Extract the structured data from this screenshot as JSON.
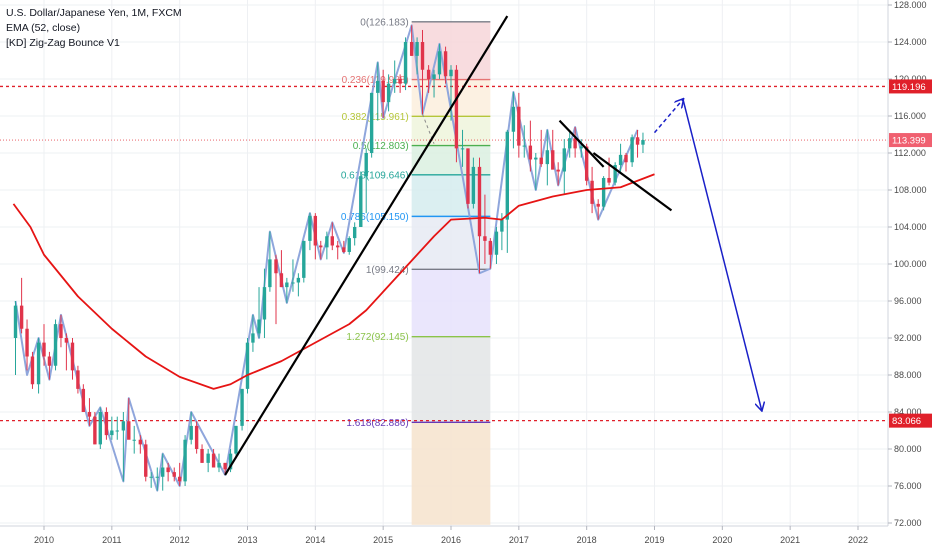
{
  "legend": {
    "title": "U.S. Dollar/Japanese Yen, 1M, FXCM",
    "ema": "EMA (52, close)",
    "indicator": "[KD] Zig-Zag Bounce V1"
  },
  "colors": {
    "up_candle": "#26a69a",
    "down_candle": "#e0344b",
    "ema": "#e61414",
    "zigzag": "#8fa6dc",
    "trendline": "#000000",
    "projection": "#1a20c8",
    "hline": "#e0202a",
    "grid": "#eef0f3"
  },
  "price_tags": [
    {
      "label": "119.196",
      "value": 119.196,
      "style": "filled"
    },
    {
      "label": "113.399",
      "value": 113.399,
      "style": "current"
    },
    {
      "label": "83.066",
      "value": 83.066,
      "style": "filled"
    }
  ],
  "chart_data": {
    "type": "candlestick",
    "title": "U.S. Dollar/Japanese Yen, 1M, FXCM",
    "x_ticks": [
      "2010",
      "2011",
      "2012",
      "2013",
      "2014",
      "2015",
      "2016",
      "2017",
      "2018",
      "2019",
      "2020",
      "2021",
      "2022"
    ],
    "y_ticks": [
      "72.000",
      "76.000",
      "80.000",
      "84.000",
      "88.000",
      "92.000",
      "96.000",
      "100.000",
      "104.000",
      "108.000",
      "112.000",
      "116.000",
      "120.000",
      "124.000",
      "128.000"
    ],
    "ylim": [
      71.5,
      128.5
    ],
    "xlim": [
      2009.55,
      2022.5
    ],
    "horizontal_lines": [
      119.196,
      83.066
    ],
    "current_price": 113.399,
    "fibonacci": {
      "from_date": 2015.42,
      "to_date": 2016.58,
      "levels": [
        {
          "label": "0(126.183)",
          "value": 126.183,
          "color": "#787b86",
          "fill": "#f7d6d9"
        },
        {
          "label": "0.236(119.938)",
          "value": 119.938,
          "color": "#e57373",
          "fill": "#fbeedd"
        },
        {
          "label": "0.382(115.961)",
          "value": 115.961,
          "color": "#b5c63a",
          "fill": "#eef5dc"
        },
        {
          "label": "0.5(112.803)",
          "value": 112.803,
          "color": "#4caf50",
          "fill": "#dbf0e0"
        },
        {
          "label": "0.618(109.646)",
          "value": 109.646,
          "color": "#26a69a",
          "fill": "#d5ecef"
        },
        {
          "label": "0.786(105.150)",
          "value": 105.15,
          "color": "#2196f3",
          "fill": "#e6eaf3"
        },
        {
          "label": "1(99.424)",
          "value": 99.424,
          "color": "#787b86",
          "fill": "#e6e2fb"
        },
        {
          "label": "1.272(92.145)",
          "value": 92.145,
          "color": "#8bc34a",
          "fill": "#e3e5e6"
        },
        {
          "label": "1.618(82.886)",
          "value": 82.886,
          "color": "#673ab7",
          "fill": "#f6e3cc"
        }
      ],
      "bottom": 71.8
    },
    "candles": [
      [
        2009.58,
        92.0,
        96.0,
        88.0,
        95.5
      ],
      [
        2009.67,
        95.5,
        98.5,
        92.5,
        93.0
      ],
      [
        2009.75,
        93.0,
        94.0,
        88.5,
        90.0
      ],
      [
        2009.83,
        90.0,
        90.5,
        86.5,
        87.0
      ],
      [
        2009.92,
        87.0,
        92.0,
        86.0,
        91.5
      ],
      [
        2010.0,
        91.5,
        93.5,
        89.0,
        90.0
      ],
      [
        2010.08,
        90.0,
        90.5,
        87.5,
        89.0
      ],
      [
        2010.17,
        89.0,
        94.0,
        88.5,
        93.5
      ],
      [
        2010.25,
        93.5,
        94.5,
        91.0,
        92.0
      ],
      [
        2010.33,
        92.0,
        92.5,
        88.5,
        91.5
      ],
      [
        2010.42,
        91.5,
        92.0,
        87.5,
        88.5
      ],
      [
        2010.5,
        88.5,
        89.0,
        86.0,
        86.5
      ],
      [
        2010.58,
        86.5,
        87.0,
        84.0,
        84.0
      ],
      [
        2010.67,
        84.0,
        85.5,
        82.5,
        83.5
      ],
      [
        2010.75,
        83.5,
        84.0,
        80.5,
        80.5
      ],
      [
        2010.83,
        80.5,
        84.5,
        80.0,
        84.0
      ],
      [
        2010.92,
        84.0,
        84.5,
        81.0,
        81.5
      ],
      [
        2011.0,
        81.5,
        83.5,
        81.0,
        82.0
      ],
      [
        2011.08,
        82.0,
        83.5,
        81.0,
        82.0
      ],
      [
        2011.17,
        82.0,
        84.0,
        76.5,
        83.0
      ],
      [
        2011.25,
        83.0,
        85.5,
        81.5,
        81.0
      ],
      [
        2011.33,
        81.0,
        82.5,
        79.5,
        81.0
      ],
      [
        2011.42,
        81.0,
        81.5,
        79.5,
        80.5
      ],
      [
        2011.5,
        80.5,
        81.0,
        76.5,
        77.0
      ],
      [
        2011.58,
        77.0,
        77.5,
        75.8,
        77.0
      ],
      [
        2011.67,
        77.0,
        78.0,
        75.5,
        77.0
      ],
      [
        2011.75,
        77.0,
        79.5,
        75.5,
        78.0
      ],
      [
        2011.83,
        78.0,
        78.5,
        76.5,
        77.5
      ],
      [
        2011.92,
        77.5,
        78.0,
        76.5,
        77.0
      ],
      [
        2012.0,
        77.0,
        78.5,
        76.0,
        76.5
      ],
      [
        2012.08,
        76.5,
        81.5,
        76.0,
        81.0
      ],
      [
        2012.17,
        81.0,
        84.0,
        80.5,
        82.5
      ],
      [
        2012.25,
        82.5,
        83.0,
        79.5,
        80.0
      ],
      [
        2012.33,
        80.0,
        80.5,
        78.5,
        78.5
      ],
      [
        2012.42,
        78.5,
        80.0,
        77.5,
        79.5
      ],
      [
        2012.5,
        79.5,
        80.0,
        78.0,
        78.0
      ],
      [
        2012.58,
        78.0,
        79.5,
        77.5,
        78.5
      ],
      [
        2012.67,
        78.5,
        78.5,
        77.2,
        77.8
      ],
      [
        2012.75,
        77.8,
        80.0,
        77.5,
        79.5
      ],
      [
        2012.83,
        79.5,
        82.5,
        79.0,
        82.5
      ],
      [
        2012.92,
        82.5,
        86.5,
        82.0,
        86.5
      ],
      [
        2013.0,
        86.5,
        92.0,
        86.0,
        91.5
      ],
      [
        2013.08,
        91.5,
        94.5,
        90.5,
        92.5
      ],
      [
        2013.17,
        92.5,
        97.5,
        92.0,
        94.0
      ],
      [
        2013.25,
        94.0,
        99.5,
        92.0,
        97.5
      ],
      [
        2013.33,
        97.5,
        103.5,
        97.0,
        100.5
      ],
      [
        2013.42,
        100.5,
        101.0,
        93.5,
        99.0
      ],
      [
        2013.5,
        99.0,
        101.5,
        97.5,
        97.5
      ],
      [
        2013.58,
        97.5,
        98.5,
        95.8,
        98.0
      ],
      [
        2013.67,
        98.0,
        100.5,
        97.0,
        98.0
      ],
      [
        2013.75,
        98.0,
        99.0,
        96.5,
        98.5
      ],
      [
        2013.83,
        98.5,
        102.5,
        98.0,
        102.5
      ],
      [
        2013.92,
        102.5,
        105.5,
        101.5,
        105.2
      ],
      [
        2014.0,
        105.2,
        105.5,
        100.5,
        102.0
      ],
      [
        2014.08,
        102.0,
        102.5,
        100.5,
        101.8
      ],
      [
        2014.17,
        101.8,
        103.5,
        100.5,
        103.0
      ],
      [
        2014.25,
        103.0,
        104.5,
        101.5,
        102.0
      ],
      [
        2014.33,
        102.0,
        102.5,
        100.5,
        101.8
      ],
      [
        2014.42,
        101.8,
        102.5,
        101.2,
        101.3
      ],
      [
        2014.5,
        101.3,
        103.0,
        101.0,
        102.8
      ],
      [
        2014.58,
        102.8,
        104.5,
        102.0,
        104.0
      ],
      [
        2014.67,
        104.0,
        110.0,
        104.0,
        109.5
      ],
      [
        2014.75,
        109.5,
        112.5,
        105.5,
        112.0
      ],
      [
        2014.83,
        112.0,
        118.5,
        111.5,
        118.5
      ],
      [
        2014.92,
        118.5,
        121.8,
        115.5,
        119.8
      ],
      [
        2015.0,
        119.8,
        121.0,
        115.8,
        117.5
      ],
      [
        2015.08,
        117.5,
        120.5,
        116.5,
        119.5
      ],
      [
        2015.17,
        119.5,
        122.0,
        118.5,
        120.0
      ],
      [
        2015.25,
        120.0,
        120.5,
        118.5,
        119.5
      ],
      [
        2015.33,
        119.5,
        124.5,
        118.8,
        124.0
      ],
      [
        2015.42,
        124.0,
        125.8,
        122.5,
        122.5
      ],
      [
        2015.5,
        122.5,
        124.5,
        120.5,
        124.0
      ],
      [
        2015.58,
        124.0,
        125.3,
        116.2,
        121.0
      ],
      [
        2015.67,
        121.0,
        121.5,
        118.5,
        120.0
      ],
      [
        2015.75,
        120.0,
        121.0,
        118.0,
        120.5
      ],
      [
        2015.83,
        120.5,
        123.8,
        120.0,
        123.0
      ],
      [
        2015.92,
        123.0,
        123.5,
        119.5,
        120.3
      ],
      [
        2016.0,
        120.3,
        121.5,
        115.5,
        121.0
      ],
      [
        2016.08,
        121.0,
        121.5,
        111.0,
        112.5
      ],
      [
        2016.17,
        112.5,
        114.5,
        110.5,
        112.5
      ],
      [
        2016.25,
        112.5,
        112.5,
        106.0,
        106.5
      ],
      [
        2016.33,
        106.5,
        111.5,
        106.0,
        110.5
      ],
      [
        2016.42,
        110.5,
        111.5,
        99.0,
        103.0
      ],
      [
        2016.5,
        103.0,
        107.5,
        100.0,
        102.5
      ],
      [
        2016.58,
        102.5,
        102.8,
        99.5,
        101.0
      ],
      [
        2016.67,
        101.0,
        104.0,
        100.0,
        103.5
      ],
      [
        2016.75,
        103.5,
        105.5,
        101.5,
        104.8
      ],
      [
        2016.83,
        104.8,
        114.5,
        101.2,
        114.3
      ],
      [
        2016.92,
        114.3,
        118.6,
        112.5,
        117.0
      ],
      [
        2017.0,
        117.0,
        118.5,
        111.5,
        112.8
      ],
      [
        2017.08,
        112.8,
        115.0,
        111.5,
        112.8
      ],
      [
        2017.17,
        112.8,
        115.5,
        110.0,
        111.3
      ],
      [
        2017.25,
        111.3,
        112.0,
        108.0,
        111.5
      ],
      [
        2017.33,
        111.5,
        114.5,
        110.5,
        110.8
      ],
      [
        2017.42,
        110.8,
        114.5,
        108.5,
        112.3
      ],
      [
        2017.5,
        112.3,
        114.5,
        110.5,
        110.2
      ],
      [
        2017.58,
        110.2,
        111.0,
        108.5,
        110.0
      ],
      [
        2017.67,
        110.0,
        113.5,
        107.5,
        112.5
      ],
      [
        2017.75,
        112.5,
        114.5,
        111.5,
        113.6
      ],
      [
        2017.83,
        113.6,
        114.8,
        111.5,
        112.5
      ],
      [
        2017.92,
        112.5,
        113.5,
        111.5,
        112.7
      ],
      [
        2018.0,
        112.7,
        113.0,
        108.5,
        109.0
      ],
      [
        2018.08,
        109.0,
        110.5,
        105.5,
        106.5
      ],
      [
        2018.17,
        106.5,
        107.0,
        104.8,
        106.2
      ],
      [
        2018.25,
        106.2,
        109.5,
        105.8,
        109.3
      ],
      [
        2018.33,
        109.3,
        111.5,
        108.5,
        108.8
      ],
      [
        2018.42,
        108.8,
        111.0,
        108.5,
        110.7
      ],
      [
        2018.5,
        110.7,
        113.0,
        110.0,
        111.8
      ],
      [
        2018.58,
        111.8,
        112.0,
        110.0,
        111.0
      ],
      [
        2018.67,
        111.0,
        114.0,
        110.5,
        113.7
      ],
      [
        2018.75,
        113.7,
        114.5,
        111.5,
        112.9
      ],
      [
        2018.83,
        112.9,
        114.2,
        112.0,
        113.4
      ]
    ],
    "ema": [
      [
        2009.55,
        106.5
      ],
      [
        2009.8,
        104.0
      ],
      [
        2010.0,
        101.0
      ],
      [
        2010.5,
        96.5
      ],
      [
        2011.0,
        93.0
      ],
      [
        2011.5,
        90.0
      ],
      [
        2012.0,
        87.8
      ],
      [
        2012.5,
        86.5
      ],
      [
        2012.75,
        87.0
      ],
      [
        2013.0,
        88.0
      ],
      [
        2013.5,
        89.5
      ],
      [
        2014.0,
        91.5
      ],
      [
        2014.5,
        93.5
      ],
      [
        2014.75,
        95.0
      ],
      [
        2015.0,
        97.0
      ],
      [
        2015.5,
        101.0
      ],
      [
        2015.75,
        103.0
      ],
      [
        2016.0,
        104.8
      ],
      [
        2016.5,
        105.0
      ],
      [
        2016.75,
        104.8
      ],
      [
        2017.0,
        106.3
      ],
      [
        2017.5,
        107.3
      ],
      [
        2018.0,
        108.0
      ],
      [
        2018.5,
        108.3
      ],
      [
        2018.75,
        109.0
      ],
      [
        2019.0,
        109.7
      ]
    ],
    "zigzag": [
      [
        2009.58,
        96.0
      ],
      [
        2009.75,
        88.0
      ],
      [
        2009.92,
        92.0
      ],
      [
        2010.08,
        87.5
      ],
      [
        2010.25,
        94.5
      ],
      [
        2010.67,
        82.5
      ],
      [
        2010.83,
        84.5
      ],
      [
        2011.17,
        76.5
      ],
      [
        2011.25,
        85.5
      ],
      [
        2011.67,
        75.5
      ],
      [
        2011.75,
        79.5
      ],
      [
        2012.0,
        76.0
      ],
      [
        2012.17,
        84.0
      ],
      [
        2012.67,
        77.2
      ],
      [
        2013.08,
        94.5
      ],
      [
        2013.17,
        92.0
      ],
      [
        2013.33,
        103.5
      ],
      [
        2013.58,
        95.8
      ],
      [
        2013.92,
        105.5
      ],
      [
        2014.08,
        100.5
      ],
      [
        2014.25,
        104.5
      ],
      [
        2014.42,
        101.2
      ],
      [
        2014.92,
        121.8
      ],
      [
        2015.0,
        115.8
      ],
      [
        2015.42,
        125.8
      ],
      [
        2015.58,
        116.2
      ],
      [
        2015.83,
        123.8
      ],
      [
        2016.42,
        99.0
      ],
      [
        2016.58,
        99.5
      ],
      [
        2016.92,
        118.6
      ],
      [
        2017.25,
        108.0
      ],
      [
        2017.42,
        114.5
      ],
      [
        2017.58,
        108.5
      ],
      [
        2017.83,
        114.8
      ],
      [
        2018.17,
        104.8
      ],
      [
        2018.75,
        114.5
      ]
    ],
    "trendlines": [
      {
        "from": [
          2012.67,
          77.2
        ],
        "to": [
          2016.83,
          126.8
        ]
      },
      {
        "from": [
          2017.6,
          115.5
        ],
        "to": [
          2018.25,
          110.5
        ]
      },
      {
        "from": [
          2018.1,
          112.0
        ],
        "to": [
          2019.25,
          105.8
        ]
      }
    ],
    "projection": [
      [
        2019.0,
        114.2
      ],
      [
        2019.42,
        117.8
      ],
      [
        2020.58,
        84.2
      ]
    ],
    "dashed_connector": [
      [
        2015.58,
        116.2
      ],
      [
        2015.75,
        113.0
      ]
    ]
  }
}
